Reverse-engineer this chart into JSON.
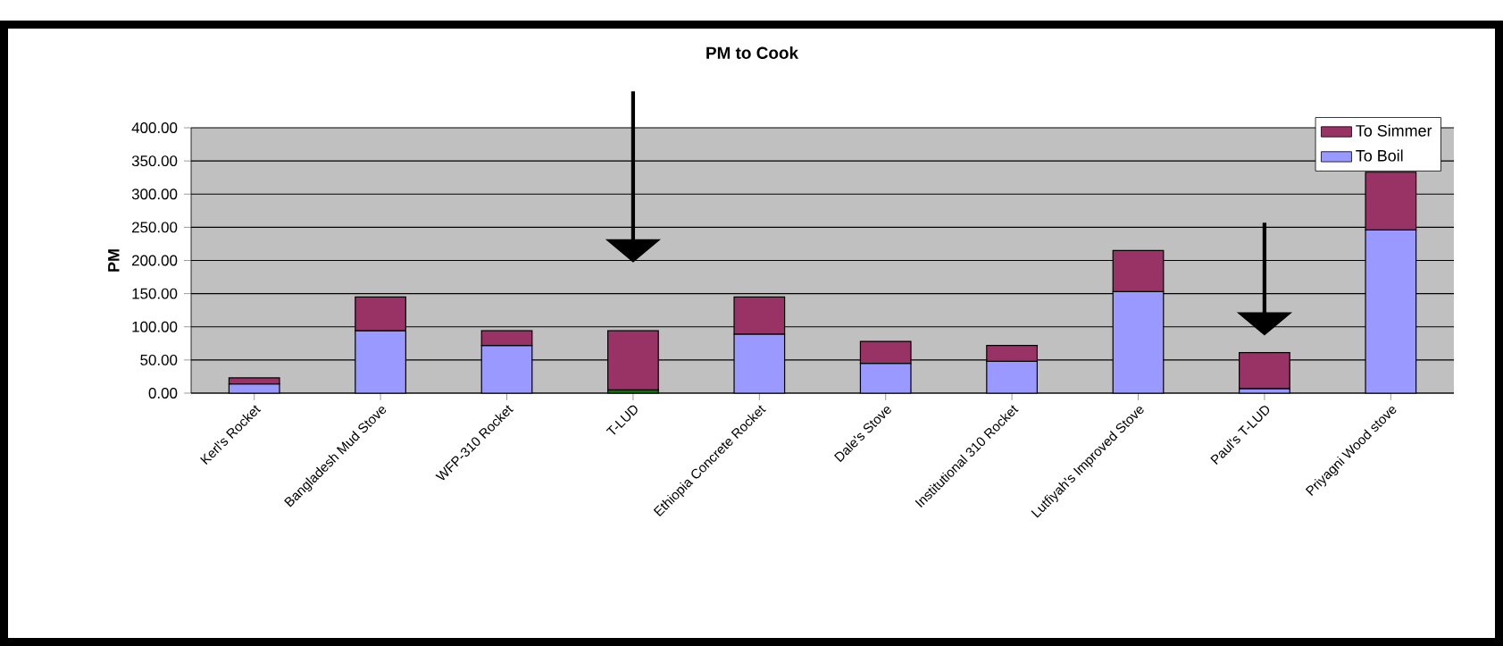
{
  "chart_data": {
    "type": "bar",
    "title": "PM to Cook",
    "ylabel": "PM",
    "categories": [
      "Kerl's Rocket",
      "Bangladesh Mud Stove",
      "WFP-310 Rocket",
      "T-LUD",
      "Ethiopia Concrete Rocket",
      "Dale's Stove",
      "Institutional 310 Rocket",
      "Lutfiyah's Improved Stove",
      "Paul's T-LUD",
      "Priyagni Wood stove"
    ],
    "stacked": true,
    "series": [
      {
        "name": "To Boil",
        "color": "#9999ff",
        "colors": [
          "#9999ff",
          "#9999ff",
          "#9999ff",
          "#007a00",
          "#9999ff",
          "#9999ff",
          "#9999ff",
          "#9999ff",
          "#9999ff",
          "#9999ff"
        ],
        "values": [
          14,
          94,
          72,
          5,
          89,
          45,
          48,
          153,
          7,
          246
        ]
      },
      {
        "name": "To Simmer",
        "color": "#993366",
        "values": [
          9,
          51,
          22,
          89,
          56,
          33,
          24,
          62,
          54,
          87
        ]
      }
    ],
    "ylim": [
      0,
      400
    ],
    "yticks": [
      {
        "value": 0,
        "label": "0.00"
      },
      {
        "value": 50,
        "label": "50.00"
      },
      {
        "value": 100,
        "label": "100.00"
      },
      {
        "value": 150,
        "label": "150.00"
      },
      {
        "value": 200,
        "label": "200.00"
      },
      {
        "value": 250,
        "label": "250.00"
      },
      {
        "value": 300,
        "label": "300.00"
      },
      {
        "value": 350,
        "label": "350.00"
      },
      {
        "value": 400,
        "label": "400.00"
      }
    ],
    "grid": "y",
    "legend": "top right"
  }
}
